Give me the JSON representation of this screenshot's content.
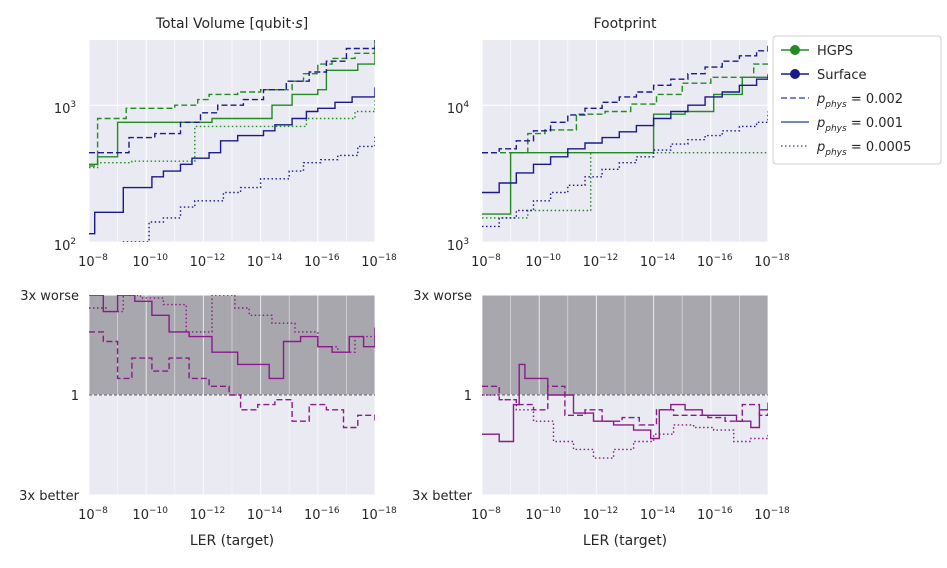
{
  "figure": {
    "colors": {
      "hgps": "#228b22",
      "surface": "#1a1a8c",
      "ratio": "#8b1a8b",
      "panel_bg": "#eaeaf2",
      "worse_band": "#a9a7ae",
      "grid": "#ffffff",
      "legend_surface_dashed": "#4c5db0"
    },
    "legend": {
      "placement": "outside-top-right",
      "entries": [
        {
          "label": "HGPS",
          "style": "line-marker",
          "color": "hgps"
        },
        {
          "label": "Surface",
          "style": "line-marker",
          "color": "surface"
        },
        {
          "label": "p_phys = 0.002",
          "style": "dashed",
          "main": "p",
          "sub": "phys",
          "rest": " = 0.002"
        },
        {
          "label": "p_phys = 0.001",
          "style": "solid",
          "main": "p",
          "sub": "phys",
          "rest": " = 0.001"
        },
        {
          "label": "p_phys = 0.0005",
          "style": "dotted",
          "main": "p",
          "sub": "phys",
          "rest": " = 0.0005"
        }
      ]
    }
  },
  "chart_data": [
    {
      "id": "volume",
      "type": "line",
      "title": "Total Volume [qubit·s]",
      "title_parts": {
        "main": "Total Volume [qubit·",
        "italic": "s",
        "end": "]"
      },
      "xscale": "log-reversed",
      "yscale": "log",
      "xlim": [
        1e-08,
        1e-18
      ],
      "ylim": [
        100,
        3000
      ],
      "xticks": [
        {
          "base": "10",
          "exp": "−8"
        },
        {
          "base": "10",
          "exp": "−10"
        },
        {
          "base": "10",
          "exp": "−12"
        },
        {
          "base": "10",
          "exp": "−14"
        },
        {
          "base": "10",
          "exp": "−16"
        },
        {
          "base": "10",
          "exp": "−18"
        }
      ],
      "yticks": [
        {
          "value": 100,
          "base": "10",
          "exp": "2"
        },
        {
          "value": 1000,
          "base": "10",
          "exp": "3"
        }
      ],
      "xlabel": "",
      "series": [
        {
          "family": "HGPS",
          "p": 0.002,
          "color": "hgps",
          "dash": "dashed",
          "x_exp": [
            8,
            8.3,
            9.0,
            9.3,
            10.3,
            11,
            11.8,
            12.2,
            13.2,
            14,
            15.1,
            15.5,
            16,
            16.5,
            17.3,
            18
          ],
          "y": [
            360,
            800,
            800,
            950,
            950,
            1000,
            1100,
            1200,
            1250,
            1300,
            1500,
            1700,
            2000,
            2200,
            2400,
            2600
          ]
        },
        {
          "family": "HGPS",
          "p": 0.001,
          "color": "hgps",
          "dash": "solid",
          "x_exp": [
            8,
            8.3,
            9.0,
            11.5,
            12.3,
            13.3,
            14.4,
            15.1,
            16,
            16.3,
            17.4,
            18
          ],
          "y": [
            370,
            420,
            750,
            750,
            800,
            800,
            1000,
            1200,
            1300,
            1800,
            2000,
            2900
          ]
        },
        {
          "family": "HGPS",
          "p": 0.0005,
          "color": "hgps",
          "dash": "dotted",
          "x_exp": [
            8,
            8.3,
            9.5,
            11.7,
            13.3,
            14.1,
            15.6,
            16.2,
            17.3,
            18
          ],
          "y": [
            350,
            380,
            390,
            700,
            700,
            700,
            800,
            800,
            900,
            1100
          ]
        },
        {
          "family": "Surface",
          "p": 0.002,
          "color": "surface",
          "dash": "dashed",
          "x_exp": [
            8,
            8.4,
            9.4,
            10.3,
            11.2,
            11.9,
            12.5,
            13.4,
            14.1,
            14.9,
            15.7,
            16.3,
            17,
            18
          ],
          "y": [
            450,
            450,
            580,
            620,
            750,
            880,
            1000,
            1100,
            1300,
            1500,
            1750,
            2100,
            2600,
            3000
          ]
        },
        {
          "family": "Surface",
          "p": 0.001,
          "color": "surface",
          "dash": "solid",
          "x_exp": [
            8,
            8.2,
            9.2,
            10.2,
            10.6,
            11.2,
            11.6,
            12.2,
            12.6,
            13.2,
            14.1,
            14.5,
            15.1,
            15.6,
            16,
            16.6,
            17.2,
            18
          ],
          "y": [
            115,
            165,
            250,
            300,
            330,
            370,
            410,
            450,
            550,
            600,
            650,
            720,
            800,
            900,
            950,
            1050,
            1150,
            1350
          ]
        },
        {
          "family": "Surface",
          "p": 0.0005,
          "color": "surface",
          "dash": "dotted",
          "x_exp": [
            8,
            9.1,
            10.1,
            10.6,
            11.2,
            11.7,
            12.2,
            12.7,
            13.3,
            14.0,
            15,
            15.5,
            16.1,
            16.7,
            17.4,
            18
          ],
          "y": [
            90,
            100,
            140,
            150,
            180,
            200,
            200,
            230,
            250,
            290,
            330,
            380,
            400,
            430,
            500,
            590
          ]
        }
      ]
    },
    {
      "id": "footprint",
      "type": "line",
      "title": "Footprint",
      "xscale": "log-reversed",
      "yscale": "log",
      "xlim": [
        1e-08,
        1e-18
      ],
      "ylim": [
        1000,
        30000
      ],
      "xticks": [
        {
          "base": "10",
          "exp": "−8"
        },
        {
          "base": "10",
          "exp": "−10"
        },
        {
          "base": "10",
          "exp": "−12"
        },
        {
          "base": "10",
          "exp": "−14"
        },
        {
          "base": "10",
          "exp": "−16"
        },
        {
          "base": "10",
          "exp": "−18"
        }
      ],
      "yticks": [
        {
          "value": 1000,
          "base": "10",
          "exp": "3"
        },
        {
          "value": 10000,
          "base": "10",
          "exp": "4"
        }
      ],
      "xlabel": "",
      "series": [
        {
          "family": "HGPS",
          "p": 0.002,
          "color": "hgps",
          "dash": "dashed",
          "x_exp": [
            8,
            8.5,
            9.6,
            10.2,
            11.3,
            12.3,
            13.2,
            14.1,
            15.0,
            16.0,
            17.5,
            18
          ],
          "y": [
            4500,
            4500,
            6200,
            6600,
            8600,
            9000,
            10200,
            12000,
            14500,
            16000,
            20000,
            21000
          ]
        },
        {
          "family": "HGPS",
          "p": 0.001,
          "color": "hgps",
          "dash": "solid",
          "x_exp": [
            8,
            9.0,
            14.0,
            15.1,
            16.1,
            17.1,
            18
          ],
          "y": [
            1600,
            4500,
            8600,
            9000,
            12000,
            16000,
            17000
          ]
        },
        {
          "family": "HGPS",
          "p": 0.0005,
          "color": "hgps",
          "dash": "dotted",
          "x_exp": [
            8,
            9.6,
            11.8,
            14.1,
            18
          ],
          "y": [
            1500,
            1700,
            4500,
            4500,
            4500
          ]
        },
        {
          "family": "Surface",
          "p": 0.002,
          "color": "surface",
          "dash": "dashed",
          "x_exp": [
            8,
            8.6,
            9.2,
            9.8,
            10.4,
            11.0,
            11.6,
            12.2,
            12.8,
            13.4,
            14.0,
            14.6,
            15.2,
            15.8,
            16.4,
            17.0,
            17.6,
            18
          ],
          "y": [
            4500,
            4800,
            5500,
            6500,
            7500,
            8500,
            9500,
            10500,
            11500,
            12500,
            14000,
            15500,
            17000,
            19000,
            21000,
            23000,
            25000,
            28000
          ]
        },
        {
          "family": "Surface",
          "p": 0.001,
          "color": "surface",
          "dash": "solid",
          "x_exp": [
            8,
            8.6,
            9.2,
            9.8,
            10.4,
            11.0,
            11.6,
            12.2,
            12.8,
            13.4,
            14.0,
            14.6,
            15.2,
            15.8,
            16.4,
            17.0,
            17.6,
            18
          ],
          "y": [
            2300,
            2700,
            3200,
            3700,
            4200,
            4800,
            5300,
            5800,
            6400,
            7100,
            8000,
            9000,
            10000,
            11500,
            12500,
            14000,
            15500,
            16500
          ]
        },
        {
          "family": "Surface",
          "p": 0.0005,
          "color": "surface",
          "dash": "dotted",
          "x_exp": [
            8,
            8.6,
            9.2,
            9.8,
            10.4,
            11.0,
            11.6,
            12.2,
            12.8,
            13.4,
            14.0,
            14.6,
            15.2,
            15.8,
            16.4,
            17.0,
            17.6,
            18
          ],
          "y": [
            1300,
            1500,
            1700,
            2000,
            2300,
            2600,
            3000,
            3400,
            3800,
            4200,
            4700,
            5200,
            5600,
            6000,
            6500,
            7000,
            7500,
            9000
          ]
        }
      ]
    },
    {
      "id": "volume-ratio",
      "type": "line",
      "title": "",
      "xscale": "log-reversed",
      "yscale": "log",
      "xlim": [
        1e-08,
        1e-18
      ],
      "ylim": [
        0.3333,
        3
      ],
      "xticks": [
        {
          "base": "10",
          "exp": "−8"
        },
        {
          "base": "10",
          "exp": "−10"
        },
        {
          "base": "10",
          "exp": "−12"
        },
        {
          "base": "10",
          "exp": "−14"
        },
        {
          "base": "10",
          "exp": "−16"
        },
        {
          "base": "10",
          "exp": "−18"
        }
      ],
      "yticks": [
        {
          "value": 3,
          "label": "3x worse"
        },
        {
          "value": 1,
          "label": "1"
        },
        {
          "value": 0.3333,
          "label": "3x better"
        }
      ],
      "xlabel": "LER (target)",
      "band": {
        "label": "worse region",
        "from": 1,
        "to": 3
      },
      "series": [
        {
          "p": 0.001,
          "color": "ratio",
          "dash": "solid",
          "x_exp": [
            8,
            8.5,
            9.0,
            9.6,
            10.2,
            10.8,
            11.5,
            12.3,
            13.2,
            14.0,
            14.3,
            14.8,
            15.4,
            16.0,
            16.5,
            17.1,
            17.6,
            18
          ],
          "y": [
            3.0,
            2.5,
            3.0,
            2.8,
            2.4,
            2.0,
            1.9,
            1.6,
            1.4,
            1.4,
            1.2,
            1.8,
            1.9,
            1.7,
            1.6,
            1.9,
            1.7,
            2.1
          ]
        },
        {
          "p": 0.002,
          "color": "ratio",
          "dash": "dashed",
          "x_exp": [
            8,
            8.5,
            9.0,
            9.5,
            10.2,
            10.8,
            11.5,
            12.2,
            12.9,
            13.3,
            13.9,
            14.5,
            15.1,
            15.7,
            16.3,
            16.9,
            17.4,
            18
          ],
          "y": [
            2.0,
            1.8,
            1.2,
            1.5,
            1.3,
            1.5,
            1.2,
            1.1,
            1.0,
            0.85,
            0.9,
            0.95,
            0.75,
            0.9,
            0.85,
            0.7,
            0.8,
            0.75
          ]
        },
        {
          "p": 0.0005,
          "color": "ratio",
          "dash": "dotted",
          "x_exp": [
            8,
            8.6,
            9.2,
            9.8,
            10.6,
            11.4,
            12.3,
            13.1,
            13.6,
            14.4,
            15.2,
            16.0,
            16.7,
            17.3,
            18
          ],
          "y": [
            2.6,
            2.5,
            3.0,
            2.9,
            2.7,
            2.0,
            3.0,
            2.6,
            2.4,
            2.2,
            2.0,
            1.7,
            1.6,
            1.9,
            1.8
          ]
        }
      ]
    },
    {
      "id": "footprint-ratio",
      "type": "line",
      "title": "",
      "xscale": "log-reversed",
      "yscale": "log",
      "xlim": [
        1e-08,
        1e-18
      ],
      "ylim": [
        0.3333,
        3
      ],
      "xticks": [
        {
          "base": "10",
          "exp": "−8"
        },
        {
          "base": "10",
          "exp": "−10"
        },
        {
          "base": "10",
          "exp": "−12"
        },
        {
          "base": "10",
          "exp": "−14"
        },
        {
          "base": "10",
          "exp": "−16"
        },
        {
          "base": "10",
          "exp": "−18"
        }
      ],
      "yticks": [
        {
          "value": 3,
          "label": "3x worse"
        },
        {
          "value": 1,
          "label": "1"
        },
        {
          "value": 0.3333,
          "label": "3x better"
        }
      ],
      "xlabel": "LER (target)",
      "band": {
        "label": "worse region",
        "from": 1,
        "to": 3
      },
      "series": [
        {
          "p": 0.001,
          "color": "ratio",
          "dash": "solid",
          "x_exp": [
            8,
            8.6,
            9.1,
            9.3,
            9.5,
            10.3,
            11.2,
            11.9,
            12.6,
            13.3,
            13.9,
            14.2,
            14.6,
            15.1,
            15.7,
            16.3,
            16.9,
            17.4,
            17.7,
            18
          ],
          "y": [
            0.65,
            0.6,
            0.9,
            1.4,
            1.2,
            1.0,
            0.82,
            0.75,
            0.72,
            0.68,
            0.62,
            0.85,
            0.9,
            0.85,
            0.8,
            0.8,
            0.75,
            0.7,
            0.85,
            0.92
          ]
        },
        {
          "p": 0.002,
          "color": "ratio",
          "dash": "dashed",
          "x_exp": [
            8,
            8.6,
            9.2,
            9.8,
            10.3,
            10.9,
            11.6,
            12.2,
            12.9,
            13.5,
            14.1,
            14.7,
            15.3,
            15.9,
            16.5,
            17.1,
            17.7,
            18
          ],
          "y": [
            1.1,
            0.95,
            0.9,
            0.85,
            1.1,
            0.8,
            0.85,
            0.75,
            0.78,
            0.72,
            0.85,
            0.8,
            0.8,
            0.78,
            0.75,
            0.9,
            0.8,
            0.82
          ]
        },
        {
          "p": 0.0005,
          "color": "ratio",
          "dash": "dotted",
          "x_exp": [
            8,
            8.6,
            9.2,
            9.8,
            10.5,
            11.2,
            11.9,
            12.6,
            13.3,
            14.0,
            14.7,
            15.4,
            16.1,
            16.8,
            17.4,
            18
          ],
          "y": [
            1.0,
            0.95,
            0.85,
            0.75,
            0.6,
            0.55,
            0.5,
            0.55,
            0.6,
            0.65,
            0.72,
            0.7,
            0.68,
            0.6,
            0.62,
            0.65
          ]
        }
      ]
    }
  ]
}
